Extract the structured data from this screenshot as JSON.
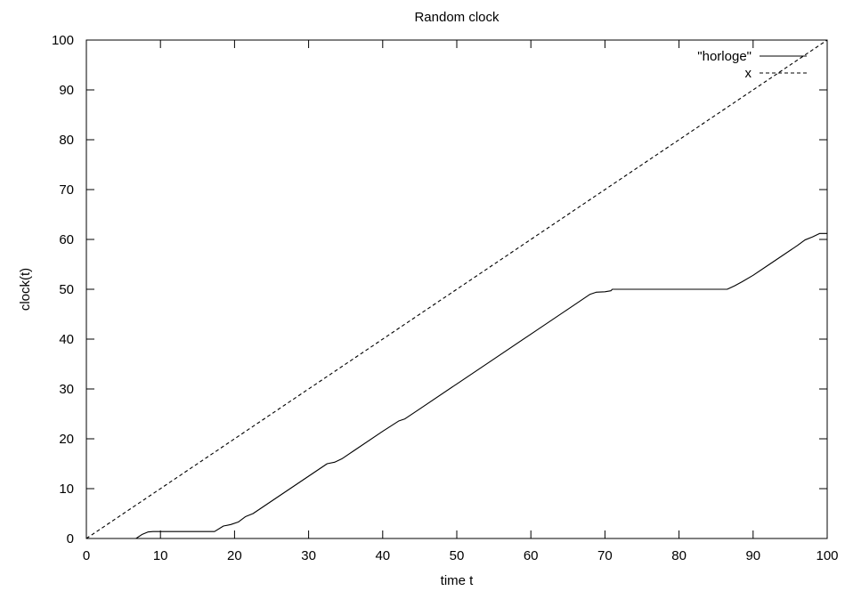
{
  "chart_data": {
    "type": "line",
    "title": "Random clock",
    "xlabel": "time t",
    "ylabel": "clock(t)",
    "xlim": [
      0,
      100
    ],
    "ylim": [
      0,
      100
    ],
    "xticks": [
      0,
      10,
      20,
      30,
      40,
      50,
      60,
      70,
      80,
      90,
      100
    ],
    "yticks": [
      0,
      10,
      20,
      30,
      40,
      50,
      60,
      70,
      80,
      90,
      100
    ],
    "grid": false,
    "legend_position": "top-right",
    "series": [
      {
        "name": "\"horloge\"",
        "style": "solid",
        "color": "#000000",
        "x": [
          0,
          6.7,
          7.5,
          8.3,
          9,
          10,
          17.3,
          18.5,
          19.5,
          20.5,
          21.5,
          22.5,
          25,
          30,
          32.5,
          33.5,
          34.5,
          36,
          40,
          42.2,
          43,
          45,
          50,
          55,
          60,
          65,
          68,
          68.8,
          70,
          70.8,
          71,
          75,
          80,
          86.5,
          87.5,
          88.5,
          90,
          92,
          96,
          97,
          98,
          99,
          100
        ],
        "y": [
          0,
          0,
          0.8,
          1.3,
          1.4,
          1.4,
          1.4,
          2.5,
          2.8,
          3.3,
          4.4,
          5,
          7.5,
          12.5,
          15,
          15.3,
          16,
          17.5,
          21.5,
          23.6,
          24,
          26,
          31,
          36,
          41,
          46,
          49,
          49.4,
          49.5,
          49.7,
          50,
          50,
          50,
          50,
          50.7,
          51.5,
          52.8,
          54.8,
          58.8,
          59.9,
          60.5,
          61.2,
          61.2
        ]
      },
      {
        "name": "x",
        "style": "dashed",
        "color": "#000000",
        "x": [
          0,
          100
        ],
        "y": [
          0,
          100
        ]
      }
    ]
  }
}
